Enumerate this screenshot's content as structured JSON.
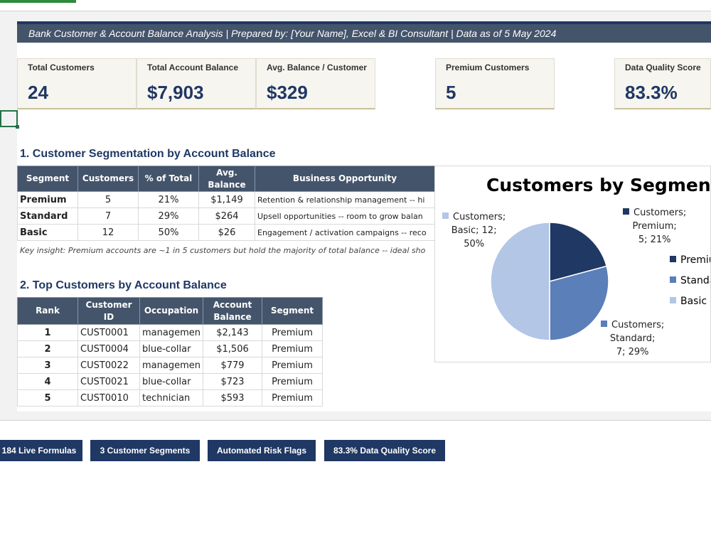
{
  "banner": {
    "text": "Bank Customer & Account Balance Analysis  |  Prepared by: [Your Name], Excel & BI Consultant  |  Data as of 5 May 2024"
  },
  "kpis": [
    {
      "label": "Total Customers",
      "value": "24"
    },
    {
      "label": "Total Account Balance",
      "value": "$7,903"
    },
    {
      "label": "Avg. Balance / Customer",
      "value": "$329"
    },
    {
      "label": "Premium Customers",
      "value": "5"
    },
    {
      "label": "Data Quality Score",
      "value": "83.3%"
    }
  ],
  "section1": {
    "title": "1.  Customer Segmentation by Account Balance",
    "headers": [
      "Segment",
      "Customers",
      "% of Total",
      "Avg. Balance",
      "Business Opportunity"
    ],
    "rows": [
      [
        "Premium",
        "5",
        "21%",
        "$1,149",
        "Retention & relationship management -- hi"
      ],
      [
        "Standard",
        "7",
        "29%",
        "$264",
        "Upsell opportunities -- room to grow balan"
      ],
      [
        "Basic",
        "12",
        "50%",
        "$26",
        "Engagement / activation campaigns -- reco"
      ]
    ],
    "insight": "Key insight: Premium accounts are ~1 in 5 customers but hold the majority of total balance -- ideal sho"
  },
  "section2": {
    "title": "2.  Top Customers by Account Balance",
    "headers": [
      "Rank",
      "Customer ID",
      "Occupation",
      "Account Balance",
      "Segment"
    ],
    "rows": [
      [
        "1",
        "CUST0001",
        "managemen",
        "$2,143",
        "Premium"
      ],
      [
        "2",
        "CUST0004",
        "blue-collar",
        "$1,506",
        "Premium"
      ],
      [
        "3",
        "CUST0022",
        "managemen",
        "$779",
        "Premium"
      ],
      [
        "4",
        "CUST0021",
        "blue-collar",
        "$723",
        "Premium"
      ],
      [
        "5",
        "CUST0010",
        "technician",
        "$593",
        "Premium"
      ]
    ]
  },
  "chart_data": {
    "type": "pie",
    "title": "Customers by Segment",
    "categories": [
      "Premium",
      "Standard",
      "Basic"
    ],
    "values": [
      5,
      7,
      12
    ],
    "percents": [
      "21%",
      "29%",
      "50%"
    ],
    "colors": [
      "#1f3864",
      "#5b7fb8",
      "#b3c6e6"
    ],
    "data_labels": [
      [
        "Customers;",
        "Premium;",
        "5; 21%"
      ],
      [
        "Customers;",
        "Standard;",
        "7; 29%"
      ],
      [
        "Customers;",
        "Basic; 12;",
        "50%"
      ]
    ],
    "legend": [
      "Premiu",
      "Standa",
      "Basic"
    ],
    "legend_placement": "right"
  },
  "badges": [
    "184 Live Formulas",
    "3 Customer Segments",
    "Automated Risk Flags",
    "83.3% Data Quality Score"
  ]
}
